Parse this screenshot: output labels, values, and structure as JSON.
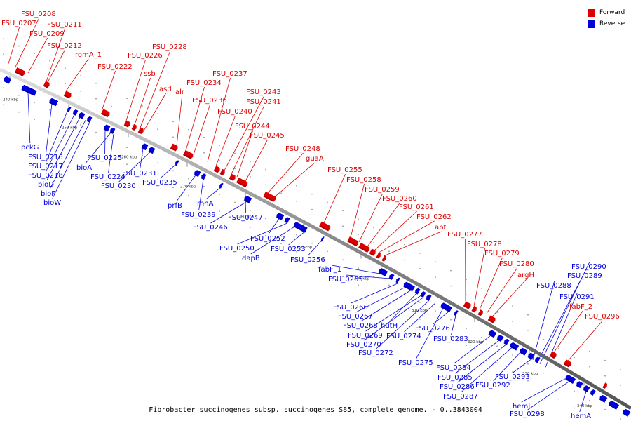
{
  "title": "Fibrobacter succinogenes subsp. succinogenes S85, complete genome. - 0..3843004",
  "legend": [
    {
      "label": "Forward",
      "color": "#dd0000"
    },
    {
      "label": "Reverse",
      "color": "#0000dd"
    }
  ],
  "scale_ticks": [
    "240 kbp",
    "250 kbp",
    "260 kbp",
    "270 kbp",
    "280 kbp",
    "290 kbp",
    "300 kbp",
    "310 kbp",
    "320 kbp",
    "330 kbp",
    "340 kbp"
  ],
  "forward_genes": [
    "FSU_0208",
    "FSU_0207",
    "FSU_0211",
    "FSU_0209",
    "FSU_0212",
    "romA_1",
    "FSU_0222",
    "FSU_0226",
    "FSU_0228",
    "ssb",
    "asd",
    "alr",
    "FSU_0234",
    "FSU_0236",
    "FSU_0237",
    "FSU_0243",
    "FSU_0241",
    "FSU_0240",
    "FSU_0244",
    "FSU_0245",
    "FSU_0248",
    "guaA",
    "FSU_0255",
    "FSU_0258",
    "FSU_0259",
    "FSU_0260",
    "FSU_0261",
    "FSU_0262",
    "apt",
    "FSU_0277",
    "FSU_0278",
    "FSU_0279",
    "FSU_0280",
    "argH",
    "fabF_2",
    "FSU_0296"
  ],
  "reverse_genes": [
    "pckG",
    "FSU_0216",
    "FSU_0217",
    "FSU_0218",
    "bioD",
    "bioF",
    "bioW",
    "FSU_0225",
    "bioA",
    "FSU_0224",
    "FSU_0231",
    "FSU_0230",
    "FSU_0235",
    "prfB",
    "FSU_0239",
    "rhnA",
    "FSU_0247",
    "FSU_0246",
    "FSU_0252",
    "FSU_0250",
    "dapB",
    "FSU_0253",
    "FSU_0256",
    "fabF_1",
    "FSU_0265",
    "FSU_0266",
    "FSU_0267",
    "FSU_0268",
    "hutH",
    "FSU_0269",
    "FSU_0270",
    "FSU_0274",
    "FSU_0272",
    "FSU_0275",
    "FSU_0276",
    "FSU_0283",
    "FSU_0290",
    "FSU_0289",
    "FSU_0288",
    "FSU_0291",
    "FSU_0284",
    "FSU_0285",
    "FSU_0286",
    "FSU_0292",
    "FSU_0287",
    "FSU_0293",
    "hemL",
    "FSU_0298",
    "hemA"
  ]
}
